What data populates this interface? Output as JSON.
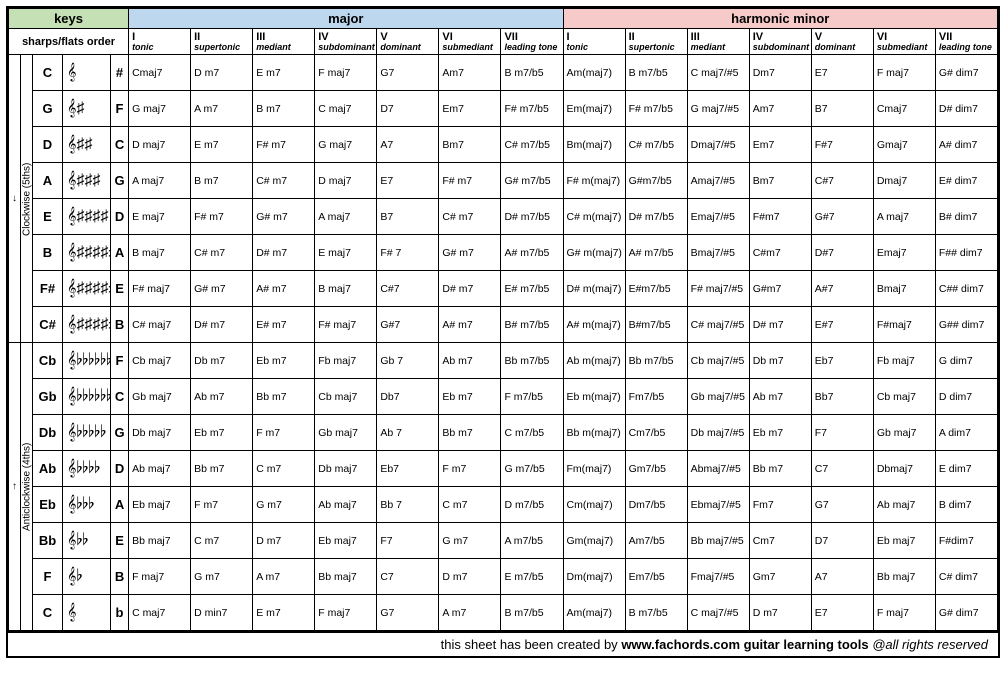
{
  "colors": {
    "keys_bg": "#c5e0b4",
    "major_bg": "#bdd7ee",
    "minor_bg": "#f7caca",
    "border": "#000000",
    "text": "#000000",
    "bg": "#ffffff"
  },
  "header": {
    "keys": "keys",
    "major": "major",
    "minor": "harmonic minor",
    "sharps_flats_order": "sharps/flats order"
  },
  "degrees": [
    {
      "roman": "I",
      "func": "tonic"
    },
    {
      "roman": "II",
      "func": "supertonic"
    },
    {
      "roman": "III",
      "func": "mediant"
    },
    {
      "roman": "IV",
      "func": "subdominant"
    },
    {
      "roman": "V",
      "func": "dominant"
    },
    {
      "roman": "VI",
      "func": "submediant"
    },
    {
      "roman": "VII",
      "func": "leading tone"
    }
  ],
  "sections": [
    {
      "label": "Clockwise (5ths)",
      "arrow": "↓"
    },
    {
      "label": "Anticlockwise (4ths)",
      "arrow": "↑"
    }
  ],
  "rows": [
    {
      "sec": 0,
      "key": "C",
      "staff": "𝄞",
      "acc": "#",
      "major": [
        "Cmaj7",
        "D m7",
        "E m7",
        "F maj7",
        "G7",
        "Am7",
        "B m7/b5"
      ],
      "minor": [
        "Am(maj7)",
        "B m7/b5",
        "C maj7/#5",
        "Dm7",
        "E7",
        "F maj7",
        "G# dim7"
      ]
    },
    {
      "sec": 0,
      "key": "G",
      "staff": "𝄞♯",
      "acc": "F",
      "major": [
        "G maj7",
        "A m7",
        "B m7",
        "C maj7",
        "D7",
        "Em7",
        "F# m7/b5"
      ],
      "minor": [
        "Em(maj7)",
        "F# m7/b5",
        "G maj7/#5",
        "Am7",
        "B7",
        "Cmaj7",
        "D# dim7"
      ]
    },
    {
      "sec": 0,
      "key": "D",
      "staff": "𝄞♯♯",
      "acc": "C",
      "major": [
        "D maj7",
        "E m7",
        "F# m7",
        "G maj7",
        "A7",
        "Bm7",
        "C# m7/b5"
      ],
      "minor": [
        "Bm(maj7)",
        "C# m7/b5",
        "Dmaj7/#5",
        "Em7",
        "F#7",
        "Gmaj7",
        "A# dim7"
      ]
    },
    {
      "sec": 0,
      "key": "A",
      "staff": "𝄞♯♯♯",
      "acc": "G",
      "major": [
        "A maj7",
        "B m7",
        "C# m7",
        "D maj7",
        "E7",
        "F# m7",
        "G# m7/b5"
      ],
      "minor": [
        "F# m(maj7)",
        "G#m7/b5",
        "Amaj7/#5",
        "Bm7",
        "C#7",
        "Dmaj7",
        "E# dim7"
      ]
    },
    {
      "sec": 0,
      "key": "E",
      "staff": "𝄞♯♯♯♯",
      "acc": "D",
      "major": [
        "E maj7",
        "F# m7",
        "G# m7",
        "A maj7",
        "B7",
        "C# m7",
        "D# m7/b5"
      ],
      "minor": [
        "C# m(maj7)",
        "D# m7/b5",
        "Emaj7/#5",
        "F#m7",
        "G#7",
        "A maj7",
        "B# dim7"
      ]
    },
    {
      "sec": 0,
      "key": "B",
      "staff": "𝄞♯♯♯♯♯",
      "acc": "A",
      "major": [
        "B maj7",
        "C# m7",
        "D# m7",
        "E maj7",
        "F# 7",
        "G# m7",
        "A# m7/b5"
      ],
      "minor": [
        "G# m(maj7)",
        "A# m7/b5",
        "Bmaj7/#5",
        "C#m7",
        "D#7",
        "Emaj7",
        "F## dim7"
      ]
    },
    {
      "sec": 0,
      "key": "F#",
      "staff": "𝄞♯♯♯♯♯♯",
      "acc": "E",
      "major": [
        "F# maj7",
        "G# m7",
        "A# m7",
        "B maj7",
        "C#7",
        "D# m7",
        "E# m7/b5"
      ],
      "minor": [
        "D# m(maj7)",
        "E#m7/b5",
        "F# maj7/#5",
        "G#m7",
        "A#7",
        "Bmaj7",
        "C## dim7"
      ]
    },
    {
      "sec": 0,
      "key": "C#",
      "staff": "𝄞♯♯♯♯♯♯♯",
      "acc": "B",
      "major": [
        "C# maj7",
        "D# m7",
        "E# m7",
        "F# maj7",
        "G#7",
        "A# m7",
        "B# m7/b5"
      ],
      "minor": [
        "A# m(maj7)",
        "B#m7/b5",
        "C# maj7/#5",
        "D# m7",
        "E#7",
        "F#maj7",
        "G## dim7"
      ]
    },
    {
      "sec": 1,
      "key": "Cb",
      "staff": "𝄞♭♭♭♭♭♭♭",
      "acc": "F",
      "major": [
        "Cb maj7",
        "Db m7",
        "Eb m7",
        "Fb maj7",
        "Gb 7",
        "Ab m7",
        "Bb m7/b5"
      ],
      "minor": [
        "Ab m(maj7)",
        "Bb m7/b5",
        "Cb maj7/#5",
        "Db m7",
        "Eb7",
        "Fb maj7",
        "G dim7"
      ]
    },
    {
      "sec": 1,
      "key": "Gb",
      "staff": "𝄞♭♭♭♭♭♭",
      "acc": "C",
      "major": [
        "Gb maj7",
        "Ab m7",
        "Bb m7",
        "Cb maj7",
        "Db7",
        "Eb m7",
        "F m7/b5"
      ],
      "minor": [
        "Eb m(maj7)",
        "Fm7/b5",
        "Gb maj7/#5",
        "Ab m7",
        "Bb7",
        "Cb maj7",
        "D dim7"
      ]
    },
    {
      "sec": 1,
      "key": "Db",
      "staff": "𝄞♭♭♭♭♭",
      "acc": "G",
      "major": [
        "Db maj7",
        "Eb m7",
        "F m7",
        "Gb maj7",
        "Ab 7",
        "Bb m7",
        "C m7/b5"
      ],
      "minor": [
        "Bb m(maj7)",
        "Cm7/b5",
        "Db maj7/#5",
        "Eb m7",
        "F7",
        "Gb maj7",
        "A dim7"
      ]
    },
    {
      "sec": 1,
      "key": "Ab",
      "staff": "𝄞♭♭♭♭",
      "acc": "D",
      "major": [
        "Ab maj7",
        "Bb m7",
        "C m7",
        "Db maj7",
        "Eb7",
        "F m7",
        "G m7/b5"
      ],
      "minor": [
        "Fm(maj7)",
        "Gm7/b5",
        "Abmaj7/#5",
        "Bb m7",
        "C7",
        "Dbmaj7",
        "E dim7"
      ]
    },
    {
      "sec": 1,
      "key": "Eb",
      "staff": "𝄞♭♭♭",
      "acc": "A",
      "major": [
        "Eb maj7",
        "F m7",
        "G m7",
        "Ab maj7",
        "Bb 7",
        "C m7",
        "D m7/b5"
      ],
      "minor": [
        "Cm(maj7)",
        "Dm7/b5",
        "Ebmaj7/#5",
        "Fm7",
        "G7",
        "Ab maj7",
        "B dim7"
      ]
    },
    {
      "sec": 1,
      "key": "Bb",
      "staff": "𝄞♭♭",
      "acc": "E",
      "major": [
        "Bb maj7",
        "C m7",
        "D m7",
        "Eb maj7",
        "F7",
        "G m7",
        "A m7/b5"
      ],
      "minor": [
        "Gm(maj7)",
        "Am7/b5",
        "Bb maj7/#5",
        "Cm7",
        "D7",
        "Eb maj7",
        "F#dim7"
      ]
    },
    {
      "sec": 1,
      "key": "F",
      "staff": "𝄞♭",
      "acc": "B",
      "major": [
        "F maj7",
        "G m7",
        "A m7",
        "Bb maj7",
        "C7",
        "D m7",
        "E m7/b5"
      ],
      "minor": [
        "Dm(maj7)",
        "Em7/b5",
        "Fmaj7/#5",
        "Gm7",
        "A7",
        "Bb maj7",
        "C# dim7"
      ]
    },
    {
      "sec": 1,
      "key": "C",
      "staff": "𝄞",
      "acc": "b",
      "major": [
        "C maj7",
        "D min7",
        "E m7",
        "F maj7",
        "G7",
        "A m7",
        "B m7/b5"
      ],
      "minor": [
        "Am(maj7)",
        "B m7/b5",
        "C maj7/#5",
        "D m7",
        "E7",
        "F maj7",
        "G# dim7"
      ]
    }
  ],
  "footer": {
    "pre": "this sheet has been created by ",
    "site": "www.fachords.com guitar learning tools",
    "post": " @all rights reserved"
  }
}
